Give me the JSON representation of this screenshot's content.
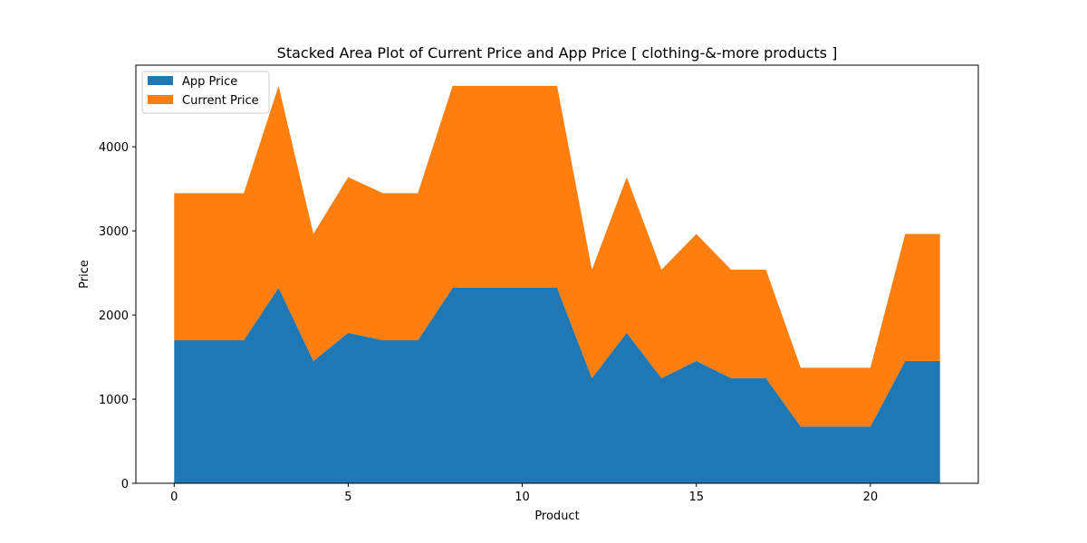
{
  "chart_data": {
    "type": "area",
    "stacked": true,
    "title": "Stacked Area Plot of Current Price and App Price [ clothing-&-more products ]",
    "xlabel": "Product",
    "ylabel": "Price",
    "x": [
      0,
      1,
      2,
      3,
      4,
      5,
      6,
      7,
      8,
      9,
      10,
      11,
      12,
      13,
      14,
      15,
      16,
      17,
      18,
      19,
      20,
      21,
      22
    ],
    "xlim": [
      -1.1,
      23.1
    ],
    "ylim": [
      0,
      4970
    ],
    "xticks": [
      0,
      5,
      10,
      15,
      20
    ],
    "yticks": [
      0,
      1000,
      2000,
      3000,
      4000
    ],
    "series": [
      {
        "name": "App Price",
        "color": "#1f77b4",
        "values": [
          1699,
          1699,
          1699,
          2324,
          1454,
          1789,
          1699,
          1699,
          2324,
          2324,
          2324,
          2324,
          1249,
          1789,
          1249,
          1454,
          1249,
          1249,
          674,
          674,
          674,
          1454,
          1454
        ]
      },
      {
        "name": "Current Price",
        "color": "#ff7f0e",
        "values": [
          1749,
          1749,
          1749,
          2400,
          1510,
          1850,
          1749,
          1749,
          2400,
          2400,
          2400,
          2400,
          1290,
          1850,
          1290,
          1510,
          1290,
          1290,
          699,
          699,
          699,
          1510,
          1510
        ]
      }
    ],
    "legend": "top-left",
    "grid": false
  }
}
